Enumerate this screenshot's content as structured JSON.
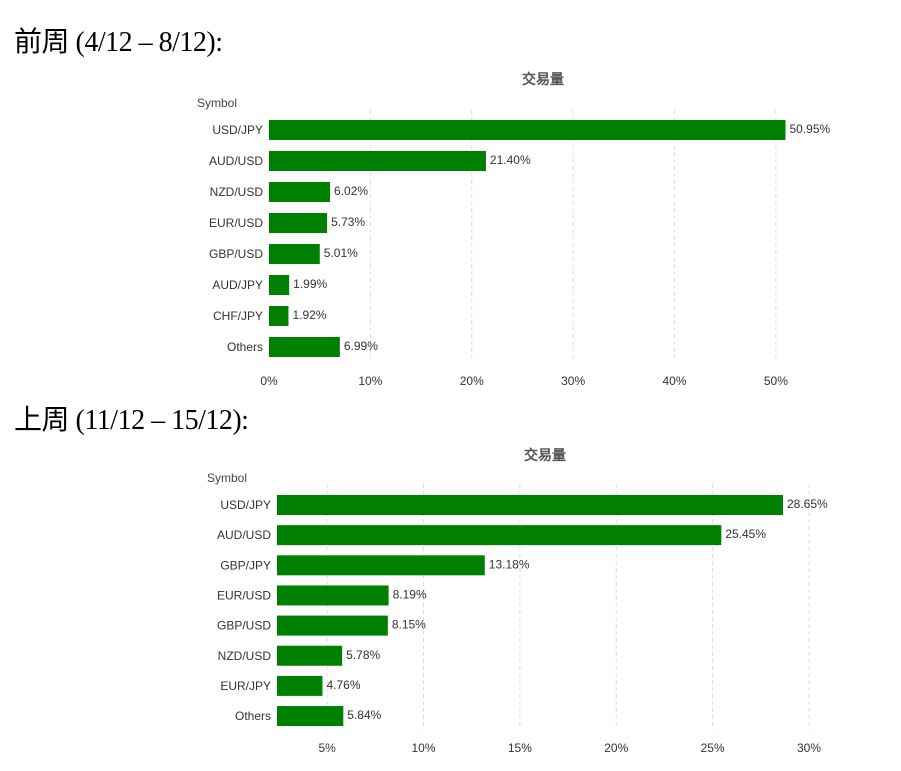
{
  "headings": [
    "前周 (4/12 – 8/12):",
    "上周 (11/12 – 15/12):"
  ],
  "colors": {
    "bar": "#008000"
  },
  "chart_data": [
    {
      "type": "bar",
      "orientation": "horizontal",
      "title": "交易量",
      "ylabel": "Symbol",
      "xlabel": "",
      "categories": [
        "USD/JPY",
        "AUD/USD",
        "NZD/USD",
        "EUR/USD",
        "GBP/USD",
        "AUD/JPY",
        "CHF/JPY",
        "Others"
      ],
      "values": [
        50.95,
        21.4,
        6.02,
        5.73,
        5.01,
        1.99,
        1.92,
        6.99
      ],
      "value_labels": [
        "50.95%",
        "21.40%",
        "6.02%",
        "5.73%",
        "5.01%",
        "1.99%",
        "1.92%",
        "6.99%"
      ],
      "xticks": [
        0,
        10,
        20,
        30,
        40,
        50
      ],
      "xtick_labels": [
        "0%",
        "10%",
        "20%",
        "30%",
        "40%",
        "50%"
      ],
      "xlim": [
        0,
        51
      ],
      "grid": true
    },
    {
      "type": "bar",
      "orientation": "horizontal",
      "title": "交易量",
      "ylabel": "Symbol",
      "xlabel": "",
      "categories": [
        "USD/JPY",
        "AUD/USD",
        "GBP/JPY",
        "EUR/USD",
        "GBP/USD",
        "NZD/USD",
        "EUR/JPY",
        "Others"
      ],
      "values": [
        28.65,
        25.45,
        13.18,
        8.19,
        8.15,
        5.78,
        4.76,
        5.84
      ],
      "value_labels": [
        "28.65%",
        "25.45%",
        "13.18%",
        "8.19%",
        "8.15%",
        "5.78%",
        "4.76%",
        "5.84%"
      ],
      "xticks": [
        5,
        10,
        15,
        20,
        25,
        30
      ],
      "xtick_labels": [
        "5%",
        "10%",
        "15%",
        "20%",
        "25%",
        "30%"
      ],
      "xlim": [
        2.4,
        28.65
      ],
      "grid": true
    }
  ]
}
